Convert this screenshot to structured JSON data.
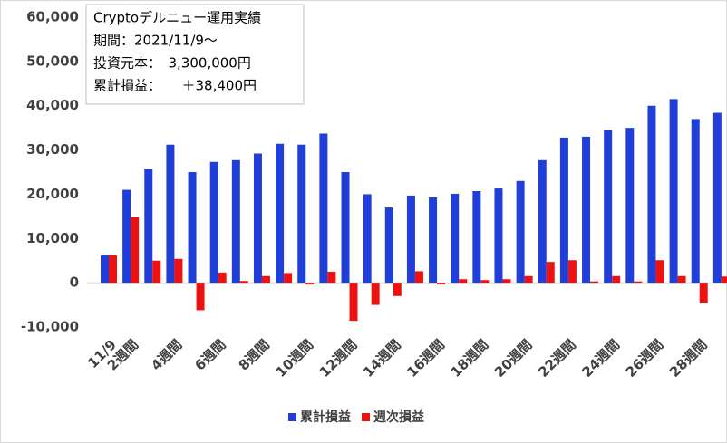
{
  "chart_data": {
    "type": "bar",
    "annotation": [
      "Cryptoデルニュー運用実績",
      "期間：2021/11/9～",
      "投資元本：　3,300,000円",
      "累計損益：　　＋38,400円"
    ],
    "categories": [
      "11/9",
      "2週間",
      null,
      "4週間",
      null,
      "6週間",
      null,
      "8週間",
      null,
      "10週間",
      null,
      "12週間",
      null,
      "14週間",
      null,
      "16週間",
      null,
      "18週間",
      null,
      "20週間",
      null,
      "22週間",
      null,
      "24週間",
      null,
      "26週間",
      null,
      "28週間",
      null
    ],
    "series": [
      {
        "name": "累計損益",
        "color": "#1f3fd8",
        "values": [
          6200,
          21000,
          25800,
          31200,
          25000,
          27300,
          27700,
          29200,
          31400,
          31200,
          33700,
          25000,
          20000,
          17000,
          19700,
          19300,
          20100,
          20700,
          21300,
          23000,
          27700,
          32800,
          33000,
          34500,
          35000,
          40000,
          41500,
          37000,
          38400
        ]
      },
      {
        "name": "週次損益",
        "color": "#ee1111",
        "values": [
          6200,
          14800,
          5000,
          5400,
          -6200,
          2300,
          400,
          1500,
          2200,
          -400,
          2500,
          -8600,
          -5000,
          -3000,
          2600,
          -400,
          800,
          600,
          800,
          1500,
          4700,
          5100,
          300,
          1500,
          300,
          5100,
          1500,
          -4600,
          1400
        ]
      }
    ],
    "ylim": [
      -10000,
      60000
    ],
    "yticks": [
      {
        "value": -10000,
        "label": "-10,000"
      },
      0,
      {
        "value": 10000,
        "label": "10,000"
      },
      {
        "value": 20000,
        "label": "20,000"
      },
      {
        "value": 30000,
        "label": "30,000"
      },
      {
        "value": 40000,
        "label": "40,000"
      },
      {
        "value": 50000,
        "label": "50,000"
      },
      {
        "value": 60000,
        "label": "60,000"
      }
    ],
    "grid": false,
    "legend": "bottom"
  }
}
